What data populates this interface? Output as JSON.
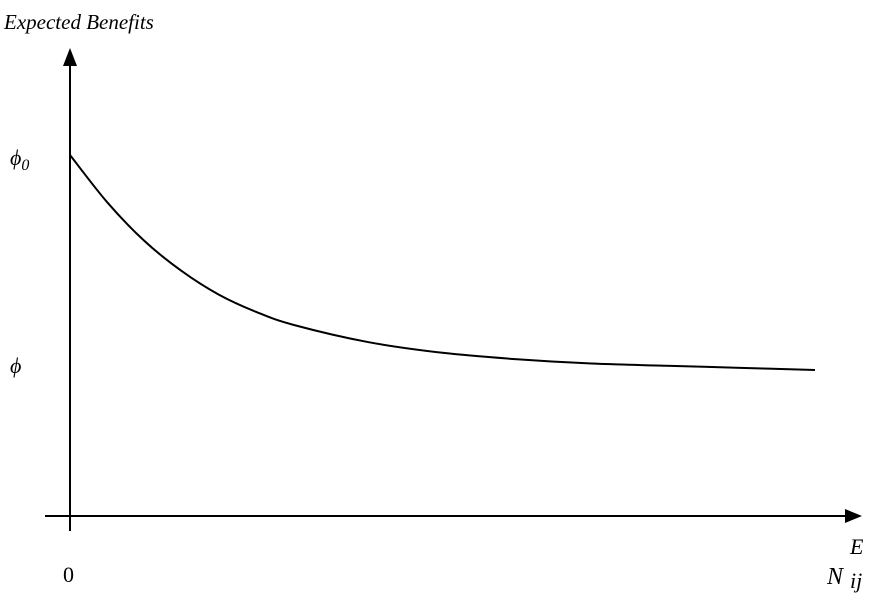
{
  "chart_data": {
    "type": "line",
    "ylabel": "Expected Benefits",
    "xlabel": {
      "base": "N",
      "subscript": "ij",
      "superscript": "E"
    },
    "x_origin_label": "0",
    "y_tick_labels": [
      {
        "label_base": "ϕ",
        "label_subscript": "0",
        "value": 1.0
      },
      {
        "label_base": "ϕ",
        "label_subscript": "",
        "value": 0.0
      }
    ],
    "series": [
      {
        "x": [
          0,
          0.05,
          0.1,
          0.15,
          0.2,
          0.25,
          0.3,
          0.4,
          0.5,
          0.6,
          0.7,
          0.8,
          0.9,
          1.0
        ],
        "y": [
          1.0,
          0.78,
          0.6,
          0.46,
          0.35,
          0.27,
          0.21,
          0.13,
          0.08,
          0.05,
          0.03,
          0.02,
          0.01,
          0.0
        ]
      }
    ],
    "ylim": [
      -0.93,
      1.35
    ],
    "xlim": [
      0,
      1.12
    ],
    "grid": false,
    "curve_color": "#000000",
    "axis_color": "#000000"
  }
}
